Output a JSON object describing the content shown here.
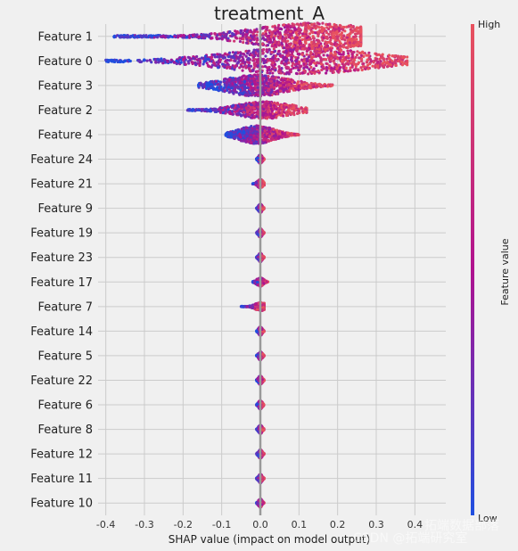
{
  "chart_data": {
    "type": "scatter",
    "subtype": "shap-beeswarm",
    "title": "treatment_A",
    "xlabel": "SHAP value (impact on model output)",
    "xlim": [
      -0.42,
      0.48
    ],
    "xticks": [
      "-0.4",
      "-0.3",
      "-0.2",
      "-0.1",
      "0.0",
      "0.1",
      "0.2",
      "0.3",
      "0.4"
    ],
    "grid": true,
    "colorbar": {
      "label": "Feature value",
      "high_label": "High",
      "low_label": "Low",
      "colors": {
        "low": "#1f4fe0",
        "mid": "#b0128f",
        "high": "#e8525e"
      }
    },
    "features": [
      {
        "name": "Feature 1",
        "range": [
          -0.38,
          0.26
        ],
        "peak": 0.14,
        "density": 1.0
      },
      {
        "name": "Feature 0",
        "range": [
          -0.4,
          0.38
        ],
        "peak": 0.1,
        "density": 1.0
      },
      {
        "name": "Feature 3",
        "range": [
          -0.16,
          0.19
        ],
        "peak": -0.01,
        "density": 0.75
      },
      {
        "name": "Feature 2",
        "range": [
          -0.19,
          0.12
        ],
        "peak": 0.01,
        "density": 0.55
      },
      {
        "name": "Feature 4",
        "range": [
          -0.09,
          0.1
        ],
        "peak": -0.01,
        "density": 0.6
      },
      {
        "name": "Feature 24",
        "range": [
          -0.01,
          0.01
        ],
        "peak": 0.0,
        "density": 0.15
      },
      {
        "name": "Feature 21",
        "range": [
          -0.02,
          0.01
        ],
        "peak": 0.0,
        "density": 0.15
      },
      {
        "name": "Feature 9",
        "range": [
          -0.01,
          0.01
        ],
        "peak": 0.0,
        "density": 0.15
      },
      {
        "name": "Feature 19",
        "range": [
          -0.01,
          0.01
        ],
        "peak": 0.0,
        "density": 0.15
      },
      {
        "name": "Feature 23",
        "range": [
          -0.01,
          0.01
        ],
        "peak": 0.0,
        "density": 0.15
      },
      {
        "name": "Feature 17",
        "range": [
          -0.02,
          0.02
        ],
        "peak": 0.0,
        "density": 0.15
      },
      {
        "name": "Feature 7",
        "range": [
          -0.05,
          0.01
        ],
        "peak": 0.0,
        "density": 0.15
      },
      {
        "name": "Feature 14",
        "range": [
          -0.01,
          0.01
        ],
        "peak": 0.0,
        "density": 0.15
      },
      {
        "name": "Feature 5",
        "range": [
          -0.01,
          0.01
        ],
        "peak": 0.0,
        "density": 0.15
      },
      {
        "name": "Feature 22",
        "range": [
          -0.01,
          0.01
        ],
        "peak": 0.0,
        "density": 0.15
      },
      {
        "name": "Feature 6",
        "range": [
          -0.01,
          0.01
        ],
        "peak": 0.0,
        "density": 0.15
      },
      {
        "name": "Feature 8",
        "range": [
          -0.01,
          0.01
        ],
        "peak": 0.0,
        "density": 0.15
      },
      {
        "name": "Feature 12",
        "range": [
          -0.01,
          0.01
        ],
        "peak": 0.0,
        "density": 0.15
      },
      {
        "name": "Feature 11",
        "range": [
          -0.01,
          0.01
        ],
        "peak": 0.0,
        "density": 0.15
      },
      {
        "name": "Feature 10",
        "range": [
          -0.01,
          0.01
        ],
        "peak": 0.0,
        "density": 0.15
      }
    ]
  },
  "watermark": {
    "text1": "拓端数据部落",
    "text2": "CSDN @拓端研究室"
  }
}
